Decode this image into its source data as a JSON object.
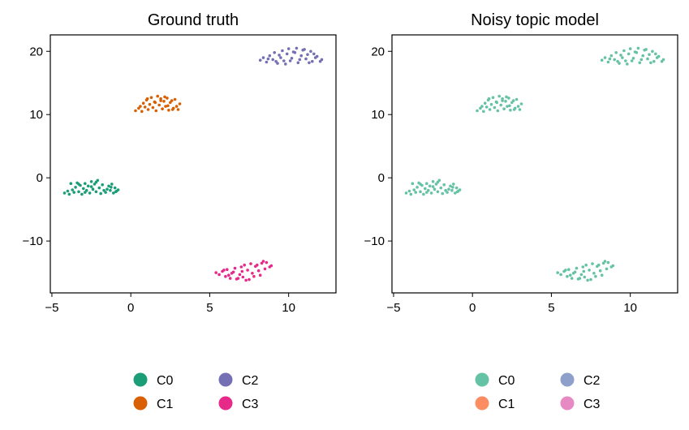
{
  "figure": {
    "panels": [
      {
        "title": "Ground truth",
        "palette": {
          "C0": "#1b9e77",
          "C1": "#d95f02",
          "C2": "#7570b3",
          "C3": "#e7298a"
        }
      },
      {
        "title": "Noisy topic model",
        "palette": {
          "C0": "#66c2a5",
          "C1": "#fc8d62",
          "C2": "#8da0cb",
          "C3": "#e78ac3"
        }
      }
    ]
  },
  "chart_data": [
    {
      "type": "scatter",
      "title": "Ground truth",
      "xlabel": "",
      "ylabel": "",
      "xlim": [
        -5.1,
        13
      ],
      "ylim": [
        -18.2,
        22.6
      ],
      "xticks": [
        -5,
        0,
        5,
        10
      ],
      "yticks": [
        -10,
        0,
        10,
        20
      ],
      "grid": false,
      "legend": {
        "placement": "below",
        "entries": [
          "C0",
          "C2",
          "C1",
          "C3"
        ]
      },
      "series": [
        {
          "name": "C0",
          "color": "#1b9e77",
          "x": [
            -4.2,
            -4.0,
            -3.9,
            -3.7,
            -3.6,
            -3.5,
            -3.4,
            -3.3,
            -3.2,
            -3.1,
            -3.0,
            -2.9,
            -2.8,
            -2.7,
            -2.6,
            -2.5,
            -2.4,
            -2.3,
            -2.2,
            -2.1,
            -2.0,
            -1.9,
            -1.8,
            -1.6,
            -1.5,
            -1.4,
            -1.3,
            -1.2,
            -1.1,
            -1.0,
            -0.9,
            -0.8,
            -3.8,
            -3.3,
            -2.9,
            -2.5,
            -2.2,
            -1.7,
            -1.25,
            -0.95
          ],
          "y": [
            -2.4,
            -2.1,
            -2.6,
            -1.9,
            -2.3,
            -1.5,
            -0.8,
            -2.2,
            -1.2,
            -2.6,
            -1.7,
            -0.9,
            -2.0,
            -1.3,
            -2.4,
            -0.6,
            -1.8,
            -1.0,
            -2.2,
            -0.4,
            -1.6,
            -2.5,
            -1.1,
            -2.3,
            -1.8,
            -1.3,
            -2.0,
            -1.0,
            -2.4,
            -1.6,
            -2.1,
            -1.9,
            -0.9,
            -1.0,
            -2.3,
            -1.4,
            -0.7,
            -2.0,
            -1.5,
            -2.2
          ]
        },
        {
          "name": "C1",
          "color": "#d95f02",
          "x": [
            0.3,
            0.5,
            0.7,
            0.8,
            0.9,
            1.0,
            1.1,
            1.2,
            1.3,
            1.4,
            1.5,
            1.6,
            1.7,
            1.8,
            1.9,
            2.0,
            2.1,
            2.2,
            2.3,
            2.4,
            2.5,
            2.6,
            2.7,
            2.8,
            2.9,
            3.0,
            3.1,
            1.05,
            1.55,
            2.15,
            2.65,
            0.6,
            2.35,
            1.9
          ],
          "y": [
            10.6,
            11.0,
            10.5,
            11.8,
            11.2,
            12.3,
            10.8,
            11.6,
            12.7,
            11.1,
            12.0,
            10.6,
            12.9,
            11.5,
            12.5,
            10.9,
            12.1,
            11.3,
            12.6,
            10.7,
            11.9,
            12.2,
            11.0,
            12.4,
            11.3,
            10.8,
            11.7,
            12.5,
            11.9,
            12.8,
            10.8,
            11.3,
            11.4,
            12.2
          ]
        },
        {
          "name": "C2",
          "color": "#7570b3",
          "x": [
            8.2,
            8.4,
            8.6,
            8.8,
            9.0,
            9.1,
            9.3,
            9.4,
            9.6,
            9.7,
            9.9,
            10.0,
            10.2,
            10.3,
            10.5,
            10.6,
            10.8,
            10.9,
            11.1,
            11.2,
            11.4,
            11.5,
            11.7,
            11.8,
            12.0,
            12.1,
            8.7,
            9.2,
            9.8,
            10.4,
            11.0,
            11.6,
            10.1,
            10.7,
            9.5,
            11.3
          ],
          "y": [
            18.6,
            19.0,
            18.3,
            19.3,
            18.7,
            19.8,
            18.1,
            19.4,
            20.1,
            18.5,
            19.6,
            20.4,
            18.9,
            19.9,
            20.5,
            18.2,
            19.3,
            20.2,
            18.8,
            19.5,
            20.0,
            18.4,
            19.0,
            19.2,
            18.4,
            18.7,
            18.8,
            18.4,
            18.0,
            19.8,
            20.3,
            19.6,
            18.5,
            18.7,
            19.0,
            18.2
          ]
        },
        {
          "name": "C3",
          "color": "#e7298a",
          "x": [
            5.4,
            5.6,
            5.8,
            6.0,
            6.1,
            6.3,
            6.4,
            6.6,
            6.7,
            6.9,
            7.0,
            7.1,
            7.3,
            7.4,
            7.6,
            7.7,
            7.9,
            8.0,
            8.2,
            8.3,
            8.5,
            8.6,
            8.8,
            8.9,
            6.2,
            6.8,
            7.2,
            7.8,
            8.4,
            6.5,
            7.5,
            8.1,
            5.9,
            7.05
          ],
          "y": [
            -15.0,
            -15.3,
            -14.8,
            -15.6,
            -14.5,
            -15.9,
            -15.1,
            -14.3,
            -16.0,
            -15.3,
            -14.1,
            -15.7,
            -16.2,
            -14.6,
            -13.6,
            -15.1,
            -14.0,
            -13.8,
            -15.4,
            -13.5,
            -14.4,
            -13.4,
            -14.1,
            -13.9,
            -15.4,
            -15.9,
            -13.8,
            -15.6,
            -13.2,
            -14.9,
            -16.1,
            -14.7,
            -14.6,
            -14.8
          ]
        }
      ]
    },
    {
      "type": "scatter",
      "title": "Noisy topic model",
      "xlabel": "",
      "ylabel": "",
      "xlim": [
        -5.1,
        13
      ],
      "ylim": [
        -18.2,
        22.6
      ],
      "xticks": [
        -5,
        0,
        5,
        10
      ],
      "yticks": [
        -10,
        0,
        10,
        20
      ],
      "grid": false,
      "legend": {
        "placement": "below",
        "entries": [
          "C0",
          "C2",
          "C1",
          "C3"
        ]
      },
      "series": [
        {
          "name": "C0",
          "color": "#66c2a5",
          "x": [
            -4.2,
            -4.0,
            -3.9,
            -3.7,
            -3.6,
            -3.5,
            -3.4,
            -3.3,
            -3.2,
            -3.1,
            -3.0,
            -2.9,
            -2.8,
            -2.7,
            -2.6,
            -2.5,
            -2.4,
            -2.3,
            -2.2,
            -2.1,
            -2.0,
            -1.9,
            -1.8,
            -1.6,
            -1.5,
            -1.4,
            -1.3,
            -1.2,
            -1.1,
            -1.0,
            -0.9,
            -0.8,
            -3.8,
            -3.3,
            -2.9,
            -2.5,
            -2.2,
            -1.7,
            -1.25,
            -0.95,
            0.3,
            0.5,
            0.7,
            0.8,
            0.9,
            1.0,
            1.1,
            1.2,
            1.3,
            1.4,
            1.5,
            1.6,
            1.7,
            1.8,
            1.9,
            2.0,
            2.1,
            2.2,
            2.3,
            2.4,
            2.5,
            2.6,
            2.7,
            2.8,
            2.9,
            3.0,
            3.1,
            1.05,
            1.55,
            2.15,
            2.65,
            0.6,
            2.35,
            1.9,
            8.2,
            8.4,
            8.6,
            8.8,
            9.0,
            9.1,
            9.3,
            9.4,
            9.6,
            9.7,
            9.9,
            10.0,
            10.2,
            10.3,
            10.5,
            10.6,
            10.8,
            10.9,
            11.1,
            11.2,
            11.4,
            11.5,
            11.7,
            11.8,
            12.0,
            12.1,
            8.7,
            9.2,
            9.8,
            10.4,
            11.0,
            11.6,
            10.1,
            10.7,
            9.5,
            11.3,
            5.4,
            5.6,
            5.8,
            6.0,
            6.1,
            6.3,
            6.4,
            6.6,
            6.7,
            6.9,
            7.0,
            7.1,
            7.3,
            7.4,
            7.6,
            7.7,
            7.9,
            8.0,
            8.2,
            8.3,
            8.5,
            8.6,
            8.8,
            8.9,
            6.2,
            6.8,
            7.2,
            7.8,
            8.4,
            6.5,
            7.5,
            8.1,
            5.9,
            7.05
          ],
          "y": [
            -2.4,
            -2.1,
            -2.6,
            -1.9,
            -2.3,
            -1.5,
            -0.8,
            -2.2,
            -1.2,
            -2.6,
            -1.7,
            -0.9,
            -2.0,
            -1.3,
            -2.4,
            -0.6,
            -1.8,
            -1.0,
            -2.2,
            -0.4,
            -1.6,
            -2.5,
            -1.1,
            -2.3,
            -1.8,
            -1.3,
            -2.0,
            -1.0,
            -2.4,
            -1.6,
            -2.1,
            -1.9,
            -0.9,
            -1.0,
            -2.3,
            -1.4,
            -0.7,
            -2.0,
            -1.5,
            -2.2,
            10.6,
            11.0,
            10.5,
            11.8,
            11.2,
            12.3,
            10.8,
            11.6,
            12.7,
            11.1,
            12.0,
            10.6,
            12.9,
            11.5,
            12.5,
            10.9,
            12.1,
            11.3,
            12.6,
            10.7,
            11.9,
            12.2,
            11.0,
            12.4,
            11.3,
            10.8,
            11.7,
            12.5,
            11.9,
            12.8,
            10.8,
            11.3,
            11.4,
            12.2,
            18.6,
            19.0,
            18.3,
            19.3,
            18.7,
            19.8,
            18.1,
            19.4,
            20.1,
            18.5,
            19.6,
            20.4,
            18.9,
            19.9,
            20.5,
            18.2,
            19.3,
            20.2,
            18.8,
            19.5,
            20.0,
            18.4,
            19.0,
            19.2,
            18.4,
            18.7,
            18.8,
            18.4,
            18.0,
            19.8,
            20.3,
            19.6,
            18.5,
            18.7,
            19.0,
            18.2,
            -15.0,
            -15.3,
            -14.8,
            -15.6,
            -14.5,
            -15.9,
            -15.1,
            -14.3,
            -16.0,
            -15.3,
            -14.1,
            -15.7,
            -16.2,
            -14.6,
            -13.6,
            -15.1,
            -14.0,
            -13.8,
            -15.4,
            -13.5,
            -14.4,
            -13.4,
            -14.1,
            -13.9,
            -15.4,
            -15.9,
            -13.8,
            -15.6,
            -13.2,
            -14.9,
            -16.1,
            -14.7,
            -14.6,
            -14.8
          ]
        },
        {
          "name": "C1",
          "color": "#fc8d62",
          "x": [],
          "y": []
        },
        {
          "name": "C2",
          "color": "#8da0cb",
          "x": [],
          "y": []
        },
        {
          "name": "C3",
          "color": "#e78ac3",
          "x": [],
          "y": []
        }
      ]
    }
  ]
}
